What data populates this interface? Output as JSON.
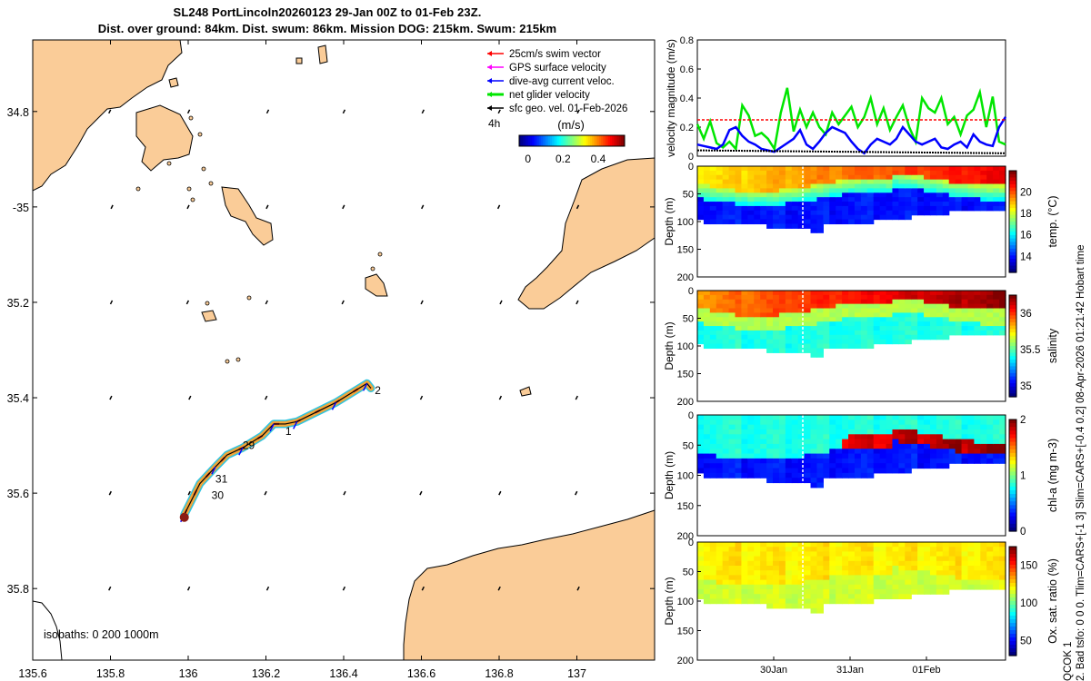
{
  "title_line1": "SL248 PortLincoln20260123 29-Jan 00Z to 01-Feb 23Z.",
  "title_line2": "Dist. over ground: 84km. Dist. swum: 86km. Mission DOG: 215km. Swum: 215km",
  "side_text_1": "2. Bad tsfo: 0  0  0. Tlim=CARS+[-1 3] Slim=CARS+[-0.4 0.2] 08-Apr-2026 01:21:42 Hobart time",
  "side_text_2": "QCOK 1",
  "colors": {
    "land": "#facc98",
    "swim_vector": "#ff0000",
    "gps_velocity": "#ff00ff",
    "dive_current": "#0000ff",
    "net_glider": "#00e600",
    "sfc_geo": "#000000"
  },
  "chart_data": [
    {
      "type": "map",
      "name": "glider-track-map",
      "xlim": [
        135.6,
        137.2
      ],
      "ylim": [
        -35.95,
        -34.65
      ],
      "x_ticks": [
        135.6,
        135.8,
        136,
        136.2,
        136.4,
        136.6,
        136.8,
        137
      ],
      "x_tick_labels": [
        "135.6",
        "135.8",
        "136",
        "136.2",
        "136.4",
        "136.6",
        "136.8",
        "137"
      ],
      "y_ticks": [
        -34.8,
        -35,
        -35.2,
        -35.4,
        -35.6,
        -35.8
      ],
      "y_tick_labels": [
        "34.8",
        "-35",
        "35.2",
        "35.4",
        "35.6",
        "35.8"
      ],
      "legend": [
        {
          "label": "25cm/s swim vector",
          "color": "#ff0000"
        },
        {
          "label": "GPS surface velocity",
          "color": "#ff00ff"
        },
        {
          "label": "dive-avg current veloc.",
          "color": "#0000ff"
        },
        {
          "label": "net glider velocity",
          "color": "#00e600"
        },
        {
          "label": "sfc geo. vel. 01-Feb-2026",
          "color": "#000000"
        }
      ],
      "legend_extra": "4h",
      "colorbar": {
        "label": "(m/s)",
        "ticks": [
          "0",
          "0.2",
          "0.4"
        ],
        "range": [
          -0.05,
          0.55
        ]
      },
      "isobaths_label": "isobaths: 0   200  1000m",
      "track": {
        "lon": [
          135.99,
          136.03,
          136.07,
          136.1,
          136.14,
          136.19,
          136.22,
          136.25,
          136.28,
          136.33,
          136.38,
          136.42,
          136.46,
          136.47
        ],
        "lat": [
          -35.645,
          -35.58,
          -35.545,
          -35.52,
          -35.505,
          -35.48,
          -35.455,
          -35.455,
          -35.45,
          -35.43,
          -35.41,
          -35.39,
          -35.37,
          -35.38
        ]
      },
      "day_labels": [
        {
          "text": "2",
          "lon": 136.48,
          "lat": -35.385
        },
        {
          "text": "1",
          "lon": 136.25,
          "lat": -35.47
        },
        {
          "text": "29",
          "lon": 136.14,
          "lat": -35.5
        },
        {
          "text": "31",
          "lon": 136.07,
          "lat": -35.57
        },
        {
          "text": "30",
          "lon": 136.06,
          "lat": -35.605
        }
      ]
    },
    {
      "type": "line",
      "name": "velocity-magnitude",
      "ylabel": "velocity magnitude (m/s)",
      "ylim": [
        0,
        0.8
      ],
      "y_ticks": [
        "0",
        "0.2",
        "0.4",
        "0.6",
        "0.8"
      ],
      "series": [
        {
          "name": "net glider velocity",
          "color": "#00e600",
          "values": [
            0.22,
            0.12,
            0.24,
            0.09,
            0.06,
            0.1,
            0.05,
            0.35,
            0.28,
            0.14,
            0.16,
            0.12,
            0.05,
            0.3,
            0.47,
            0.17,
            0.32,
            0.2,
            0.3,
            0.2,
            0.15,
            0.3,
            0.22,
            0.28,
            0.34,
            0.2,
            0.27,
            0.4,
            0.22,
            0.33,
            0.18,
            0.27,
            0.35,
            0.2,
            0.1,
            0.4,
            0.33,
            0.3,
            0.4,
            0.22,
            0.27,
            0.15,
            0.28,
            0.32,
            0.44,
            0.2,
            0.41,
            0.1,
            0.08
          ]
        },
        {
          "name": "dive-avg current veloc.",
          "color": "#0000ff",
          "values": [
            0.08,
            0.07,
            0.06,
            0.05,
            0.08,
            0.18,
            0.2,
            0.14,
            0.1,
            0.08,
            0.05,
            0.04,
            0.03,
            0.06,
            0.09,
            0.12,
            0.18,
            0.08,
            0.05,
            0.1,
            0.16,
            0.2,
            0.18,
            0.16,
            0.1,
            0.05,
            0.02,
            0.08,
            0.12,
            0.1,
            0.08,
            0.12,
            0.2,
            0.15,
            0.1,
            0.08,
            0.1,
            0.12,
            0.06,
            0.05,
            0.08,
            0.1,
            0.06,
            0.15,
            0.1,
            0.08,
            0.07,
            0.2,
            0.27
          ]
        },
        {
          "name": "25cm/s swim vector",
          "color": "#ff0000",
          "constant": 0.25
        },
        {
          "name": "sfc geo. vel.",
          "color": "#000000",
          "values_range": [
            0.04,
            0.02
          ]
        }
      ]
    },
    {
      "type": "heatmap",
      "name": "temperature-section",
      "ylabel": "Depth (m)",
      "colorbar_label": "temp. (°C)",
      "colorbar_range": [
        12.5,
        22
      ],
      "colorbar_ticks": [
        "14",
        "16",
        "18",
        "20"
      ],
      "y_ticks": [
        "0",
        "50",
        "100",
        "150",
        "200"
      ],
      "ylim": [
        0,
        200
      ]
    },
    {
      "type": "heatmap",
      "name": "salinity-section",
      "ylabel": "Depth (m)",
      "colorbar_label": "salinity",
      "colorbar_range": [
        34.85,
        36.25
      ],
      "colorbar_ticks": [
        "35",
        "35.5",
        "36"
      ],
      "y_ticks": [
        "0",
        "50",
        "100",
        "150",
        "200"
      ],
      "ylim": [
        0,
        200
      ]
    },
    {
      "type": "heatmap",
      "name": "chlorophyll-section",
      "ylabel": "Depth (m)",
      "colorbar_label": "chl-a (mg m-3)",
      "colorbar_range": [
        0,
        2
      ],
      "colorbar_ticks": [
        "0",
        "1",
        "2"
      ],
      "y_ticks": [
        "0",
        "50",
        "100",
        "150",
        "200"
      ],
      "ylim": [
        0,
        200
      ]
    },
    {
      "type": "heatmap",
      "name": "oxygen-section",
      "ylabel": "Depth (m)",
      "colorbar_label": "Ox. sat. ratio (%)",
      "colorbar_range": [
        30,
        175
      ],
      "colorbar_ticks": [
        "50",
        "100",
        "150"
      ],
      "y_ticks": [
        "0",
        "50",
        "100",
        "150",
        "200"
      ],
      "ylim": [
        0,
        200
      ],
      "x_tick_labels": [
        "30Jan",
        "31Jan",
        "01Feb"
      ]
    }
  ]
}
